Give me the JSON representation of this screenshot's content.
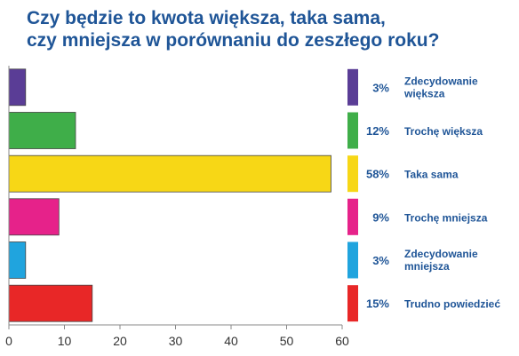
{
  "chart_data": {
    "type": "bar",
    "orientation": "horizontal",
    "title": "Czy będzie to kwota większa, taka sama, czy mniejsza w porównaniu do zeszłego roku?",
    "title_lines": [
      "Czy będzie to kwota większa, taka sama,",
      "czy mniejsza w porównaniu do zeszłego roku?"
    ],
    "categories": [
      [
        "Zdecydowanie",
        "większa"
      ],
      [
        "Trochę większa"
      ],
      [
        "Taka sama"
      ],
      [
        "Trochę mniejsza"
      ],
      [
        "Zdecydowanie",
        "mniejsza"
      ],
      [
        "Trudno powiedzieć"
      ]
    ],
    "values": [
      3,
      12,
      58,
      9,
      3,
      15
    ],
    "value_labels": [
      "3%",
      "12%",
      "58%",
      "9%",
      "3%",
      "15%"
    ],
    "colors": [
      "#5a3d96",
      "#3fae49",
      "#f7d716",
      "#e6228a",
      "#20a4de",
      "#e82727"
    ],
    "xlim": [
      0,
      60
    ],
    "x_ticks": [
      "0",
      "10",
      "20",
      "30",
      "40",
      "50",
      "60"
    ],
    "grid": false,
    "legend_position": "right"
  }
}
